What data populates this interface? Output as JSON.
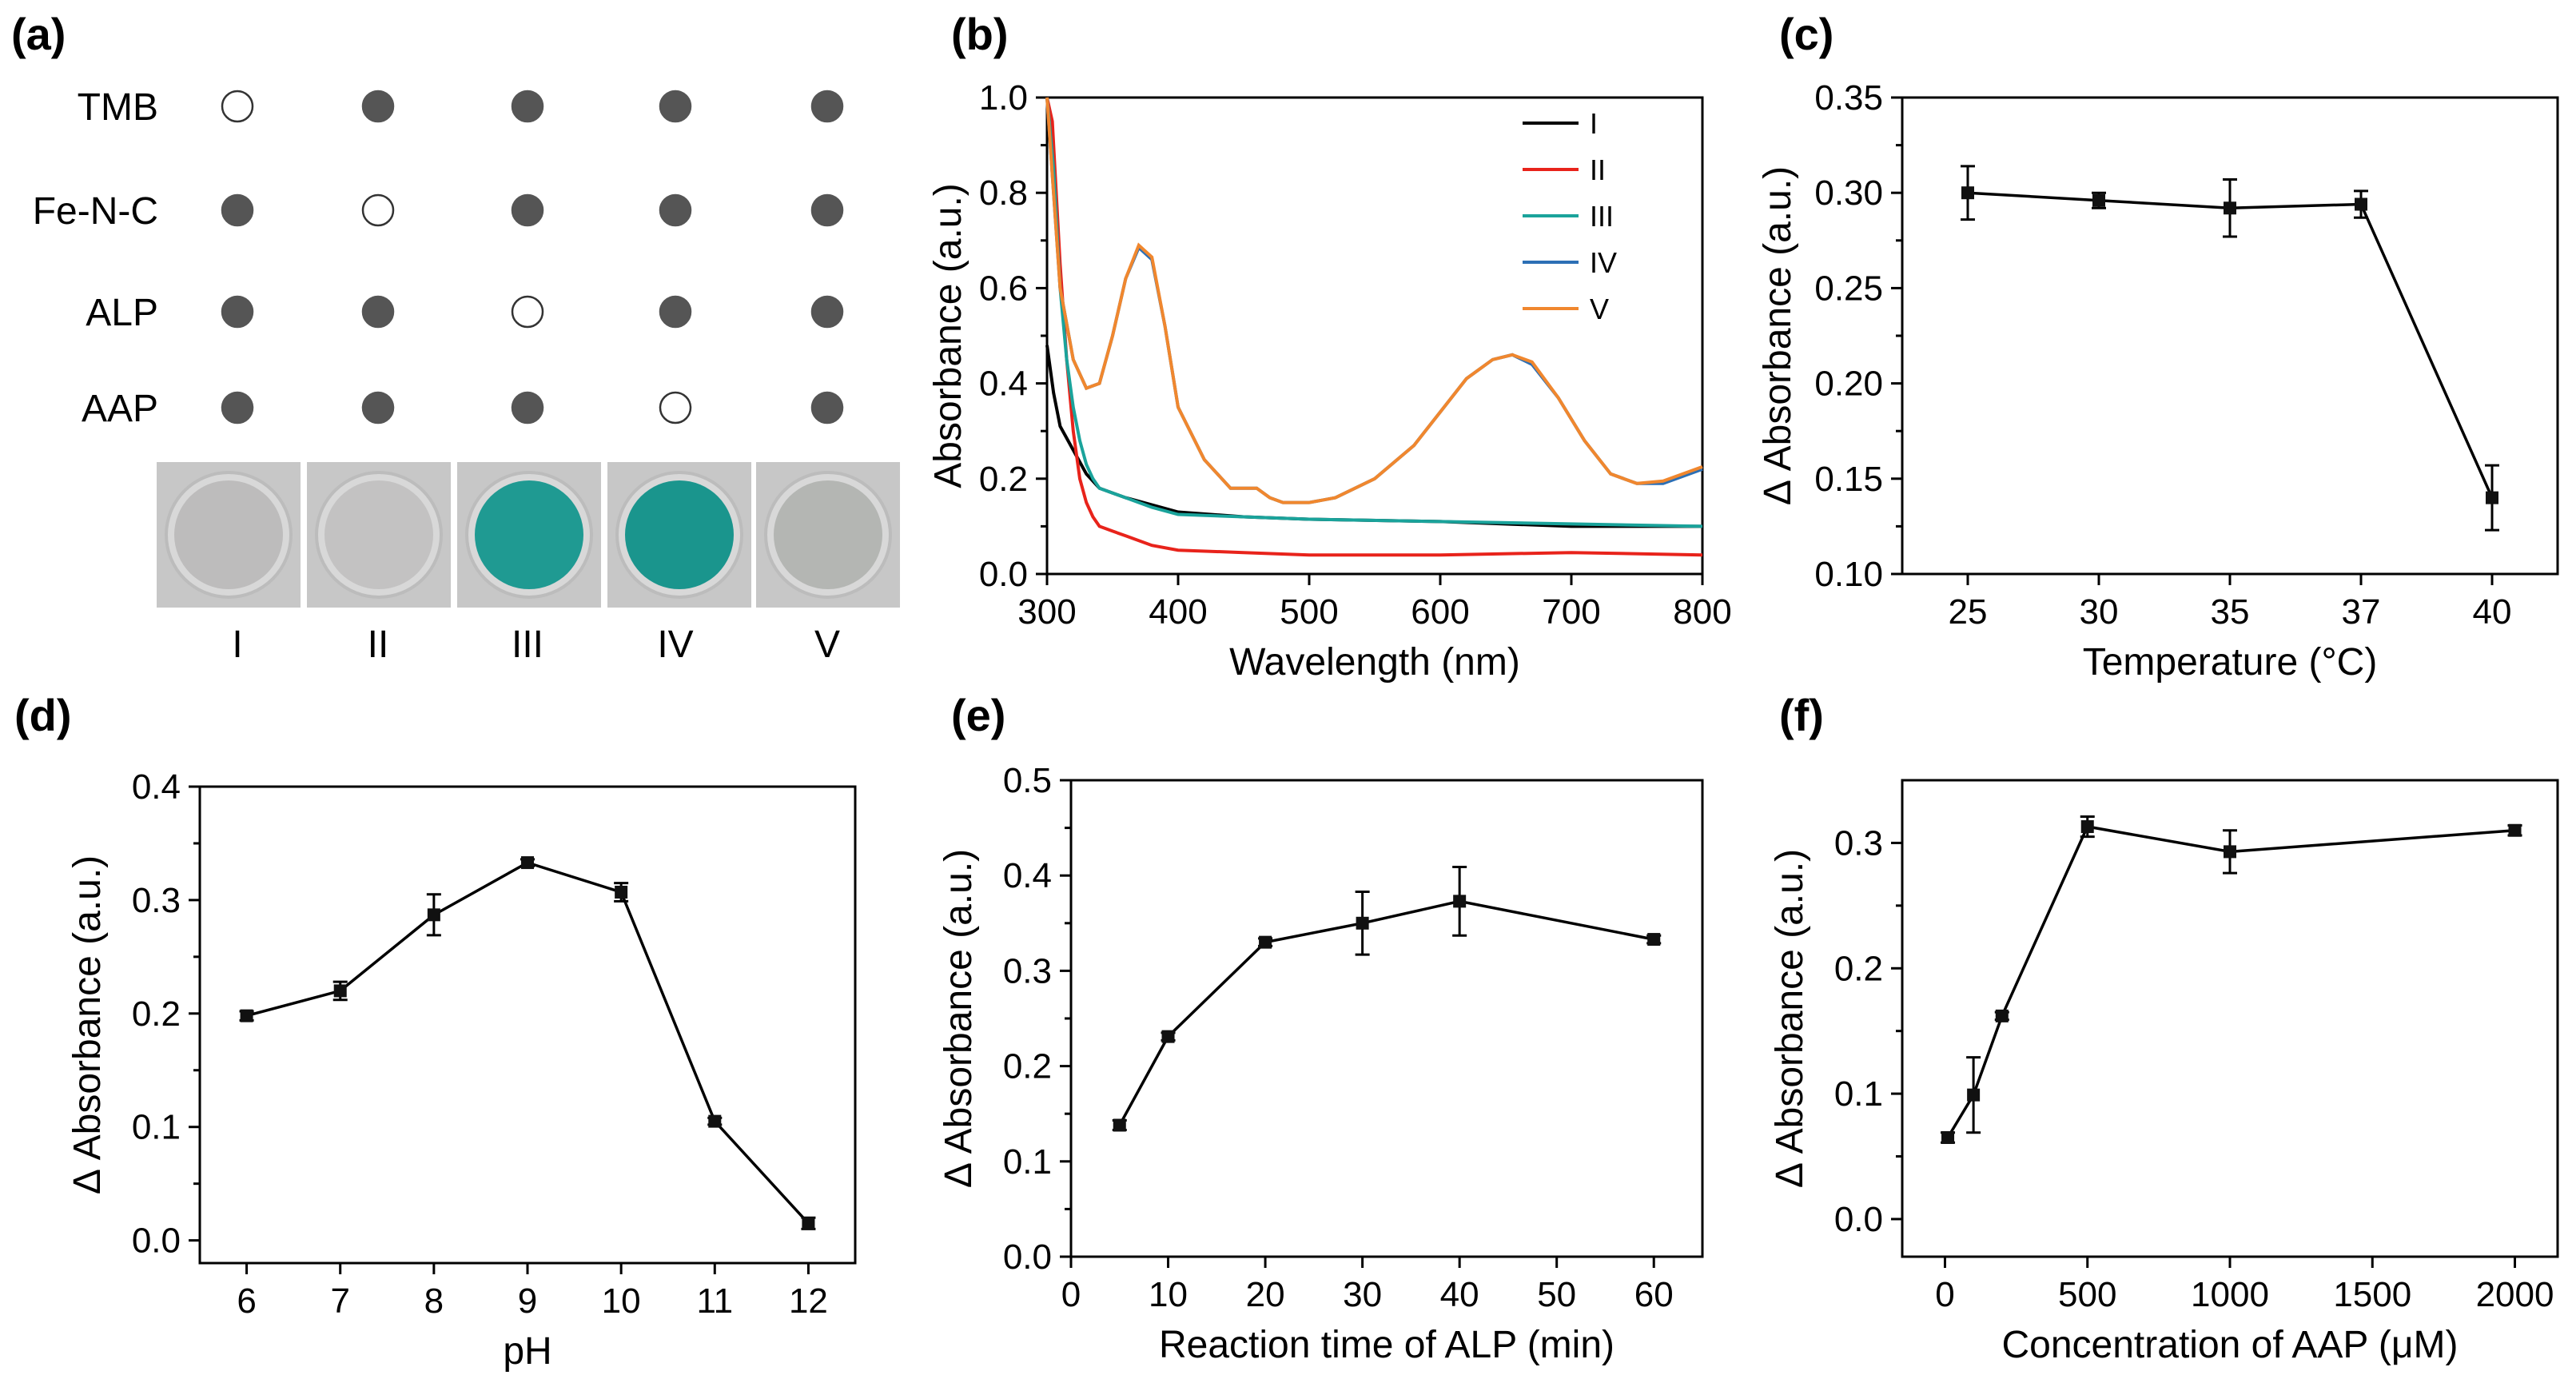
{
  "figure": {
    "panels": [
      "(a)",
      "(b)",
      "(c)",
      "(d)",
      "(e)",
      "(f)"
    ]
  },
  "panel_a": {
    "label": "(a)",
    "row_labels": [
      "TMB",
      "Fe-N-C",
      "ALP",
      "AAP"
    ],
    "column_labels": [
      "I",
      "II",
      "III",
      "IV",
      "V"
    ],
    "presence_matrix": [
      [
        false,
        true,
        true,
        true,
        true
      ],
      [
        true,
        false,
        true,
        true,
        true
      ],
      [
        true,
        true,
        false,
        true,
        true
      ],
      [
        true,
        true,
        true,
        false,
        true
      ]
    ],
    "well_colors": [
      "#bdbcbc",
      "#c3c2c2",
      "#1f9a92",
      "#1a958d",
      "#b4b6b3"
    ],
    "colors": {
      "filled_dot": "#555555",
      "empty_dot": "#ffffff",
      "well_frame": "#c9c9c9"
    }
  },
  "chart_data": [
    {
      "panel": "(b)",
      "type": "line",
      "title": "",
      "xlabel": "Wavelength (nm)",
      "ylabel": "Absorbance (a.u.)",
      "xlim": [
        300,
        800
      ],
      "ylim": [
        0.0,
        1.0
      ],
      "xticks": [
        300,
        400,
        500,
        600,
        700,
        800
      ],
      "yticks": [
        0.0,
        0.2,
        0.4,
        0.6,
        0.8,
        1.0
      ],
      "xtick_labels": [
        "300",
        "400",
        "500",
        "600",
        "700",
        "800"
      ],
      "ytick_labels": [
        "0.0",
        "0.2",
        "0.4",
        "0.6",
        "0.8",
        "1.0"
      ],
      "legend_position": "top-right",
      "series": [
        {
          "name": "I",
          "color": "#000000",
          "x": [
            300,
            305,
            310,
            320,
            330,
            340,
            360,
            400,
            450,
            500,
            600,
            700,
            800
          ],
          "y": [
            0.48,
            0.38,
            0.31,
            0.26,
            0.21,
            0.18,
            0.16,
            0.13,
            0.12,
            0.115,
            0.11,
            0.1,
            0.1
          ]
        },
        {
          "name": "II",
          "color": "#e8231b",
          "x": [
            300,
            304,
            310,
            315,
            320,
            325,
            330,
            335,
            340,
            350,
            360,
            380,
            400,
            450,
            500,
            600,
            700,
            800
          ],
          "y": [
            1.0,
            0.95,
            0.65,
            0.45,
            0.3,
            0.2,
            0.15,
            0.12,
            0.1,
            0.09,
            0.08,
            0.06,
            0.05,
            0.045,
            0.04,
            0.04,
            0.045,
            0.04
          ]
        },
        {
          "name": "III",
          "color": "#1aa39b",
          "x": [
            300,
            305,
            310,
            315,
            320,
            325,
            330,
            335,
            340,
            350,
            360,
            380,
            400,
            450,
            500,
            600,
            700,
            800
          ],
          "y": [
            1.0,
            0.85,
            0.6,
            0.45,
            0.35,
            0.28,
            0.23,
            0.2,
            0.18,
            0.17,
            0.16,
            0.14,
            0.125,
            0.12,
            0.115,
            0.11,
            0.105,
            0.1
          ]
        },
        {
          "name": "IV",
          "color": "#2c6fb5",
          "x": [
            300,
            305,
            310,
            320,
            330,
            340,
            350,
            360,
            370,
            380,
            390,
            400,
            420,
            440,
            460,
            470,
            480,
            500,
            520,
            550,
            580,
            600,
            620,
            640,
            655,
            670,
            690,
            710,
            730,
            750,
            770,
            800
          ],
          "y": [
            1.0,
            0.8,
            0.6,
            0.45,
            0.39,
            0.4,
            0.5,
            0.62,
            0.685,
            0.66,
            0.52,
            0.35,
            0.24,
            0.18,
            0.18,
            0.16,
            0.15,
            0.15,
            0.16,
            0.2,
            0.27,
            0.34,
            0.41,
            0.45,
            0.46,
            0.44,
            0.37,
            0.28,
            0.21,
            0.19,
            0.19,
            0.22
          ]
        },
        {
          "name": "V",
          "color": "#f0872e",
          "x": [
            300,
            305,
            310,
            320,
            330,
            340,
            350,
            360,
            370,
            380,
            390,
            400,
            420,
            440,
            460,
            470,
            480,
            500,
            520,
            550,
            580,
            600,
            620,
            640,
            655,
            670,
            690,
            710,
            730,
            750,
            770,
            800
          ],
          "y": [
            1.0,
            0.8,
            0.6,
            0.45,
            0.39,
            0.4,
            0.5,
            0.62,
            0.69,
            0.665,
            0.52,
            0.35,
            0.24,
            0.18,
            0.18,
            0.16,
            0.15,
            0.15,
            0.16,
            0.2,
            0.27,
            0.34,
            0.41,
            0.45,
            0.46,
            0.445,
            0.37,
            0.28,
            0.21,
            0.19,
            0.195,
            0.225
          ]
        }
      ]
    },
    {
      "panel": "(c)",
      "type": "line",
      "title": "",
      "xlabel": "Temperature (°C)",
      "ylabel": "Δ Absorbance (a.u.)",
      "categories": [
        "25",
        "30",
        "35",
        "37",
        "40"
      ],
      "values": [
        0.3,
        0.296,
        0.292,
        0.294,
        0.14
      ],
      "errors": [
        0.014,
        0.004,
        0.015,
        0.007,
        0.017
      ],
      "ylim": [
        0.1,
        0.35
      ],
      "yticks": [
        0.1,
        0.15,
        0.2,
        0.25,
        0.3,
        0.35
      ],
      "ytick_labels": [
        "0.10",
        "0.15",
        "0.20",
        "0.25",
        "0.30",
        "0.35"
      ]
    },
    {
      "panel": "(d)",
      "type": "line",
      "title": "",
      "xlabel": "pH",
      "ylabel": "Δ Absorbance (a.u.)",
      "x": [
        6,
        7,
        8,
        9,
        10,
        11,
        12
      ],
      "values": [
        0.198,
        0.22,
        0.287,
        0.333,
        0.307,
        0.105,
        0.015
      ],
      "errors": [
        0.004,
        0.008,
        0.018,
        0.003,
        0.008,
        0.003,
        0.005
      ],
      "xlim": [
        5.5,
        12.5
      ],
      "ylim": [
        -0.02,
        0.4
      ],
      "xticks": [
        6,
        7,
        8,
        9,
        10,
        11,
        12
      ],
      "xtick_labels": [
        "6",
        "7",
        "8",
        "9",
        "10",
        "11",
        "12"
      ],
      "yticks": [
        0.0,
        0.1,
        0.2,
        0.3,
        0.4
      ],
      "ytick_labels": [
        "0.0",
        "0.1",
        "0.2",
        "0.3",
        "0.4"
      ]
    },
    {
      "panel": "(e)",
      "type": "line",
      "title": "",
      "xlabel": "Reaction time of ALP (min)",
      "ylabel": "Δ Absorbance (a.u.)",
      "x": [
        5,
        10,
        20,
        30,
        40,
        60
      ],
      "values": [
        0.138,
        0.231,
        0.33,
        0.35,
        0.373,
        0.333
      ],
      "errors": [
        0.005,
        0.004,
        0.004,
        0.033,
        0.036,
        0.004
      ],
      "xlim": [
        0,
        65
      ],
      "ylim": [
        0.0,
        0.5
      ],
      "xticks": [
        0,
        10,
        20,
        30,
        40,
        50,
        60
      ],
      "xtick_labels": [
        "0",
        "10",
        "20",
        "30",
        "40",
        "50",
        "60"
      ],
      "yticks": [
        0.0,
        0.1,
        0.2,
        0.3,
        0.4,
        0.5
      ],
      "ytick_labels": [
        "0.0",
        "0.1",
        "0.2",
        "0.3",
        "0.4",
        "0.5"
      ]
    },
    {
      "panel": "(f)",
      "type": "line",
      "title": "",
      "xlabel": "Concentration of AAP (μM)",
      "ylabel": "Δ Absorbance (a.u.)",
      "x": [
        10,
        100,
        200,
        500,
        1000,
        2000
      ],
      "values": [
        0.065,
        0.099,
        0.162,
        0.313,
        0.293,
        0.31
      ],
      "errors": [
        0.004,
        0.03,
        0.003,
        0.008,
        0.017,
        0.004
      ],
      "xlim": [
        -150,
        2150
      ],
      "ylim": [
        -0.03,
        0.35
      ],
      "xticks": [
        0,
        500,
        1000,
        1500,
        2000
      ],
      "xtick_labels": [
        "0",
        "500",
        "1000",
        "1500",
        "2000"
      ],
      "yticks": [
        0.0,
        0.1,
        0.2,
        0.3
      ],
      "ytick_labels": [
        "0.0",
        "0.1",
        "0.2",
        "0.3"
      ]
    }
  ]
}
